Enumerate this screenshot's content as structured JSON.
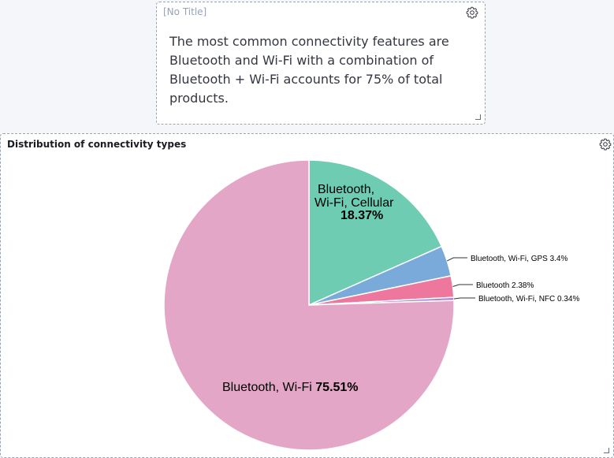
{
  "markdown_panel": {
    "title": "[No Title]",
    "text": "The most common connectivity features are Bluetooth and Wi-Fi with a combination of Bluetooth + Wi-Fi accounts for 75% of total products."
  },
  "chart_panel": {
    "title": "Distribution of connectivity types"
  },
  "chart_data": {
    "type": "pie",
    "title": "Distribution of connectivity types",
    "slices": [
      {
        "label": "Bluetooth, Wi-Fi, Cellular",
        "value": 18.37,
        "pct_label": "18.37%",
        "color": "#6dccb1"
      },
      {
        "label": "Bluetooth, Wi-Fi, GPS",
        "value": 3.4,
        "pct_label": "3.4%",
        "color": "#79aad9"
      },
      {
        "label": "Bluetooth",
        "value": 2.38,
        "pct_label": "2.38%",
        "color": "#ee789d"
      },
      {
        "label": "Bluetooth, Wi-Fi, NFC",
        "value": 0.34,
        "pct_label": "0.34%",
        "color": "#a987d1"
      },
      {
        "label": "Bluetooth, Wi-Fi",
        "value": 75.51,
        "pct_label": "75.51%",
        "color": "#e4a6c7"
      }
    ]
  }
}
